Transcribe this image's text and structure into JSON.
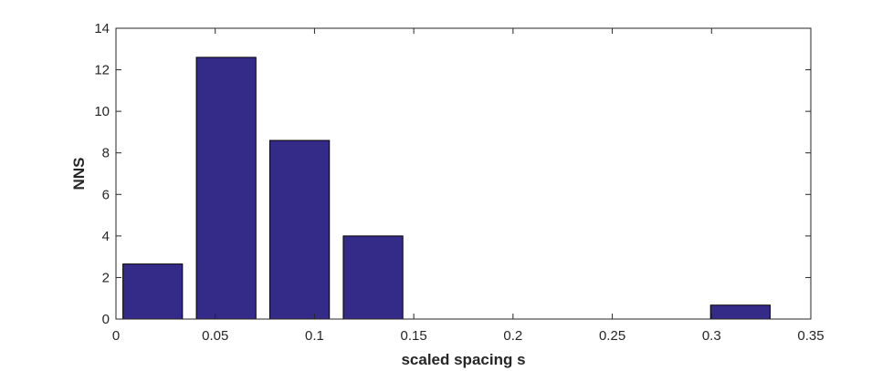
{
  "chart_data": {
    "type": "bar",
    "xlabel": "scaled spacing s",
    "ylabel": "NNS",
    "xlim": [
      0,
      0.35
    ],
    "ylim": [
      0,
      14
    ],
    "xticks": [
      0,
      0.05,
      0.1,
      0.15,
      0.2,
      0.25,
      0.3,
      0.35
    ],
    "xtick_labels": [
      "0",
      "0.05",
      "0.1",
      "0.15",
      "0.2",
      "0.25",
      "0.3",
      "0.35"
    ],
    "yticks": [
      0,
      2,
      4,
      6,
      8,
      10,
      12,
      14
    ],
    "ytick_labels": [
      "0",
      "2",
      "4",
      "6",
      "8",
      "10",
      "12",
      "14"
    ],
    "bar_width": 0.03,
    "bar_color": "#342a87",
    "x": [
      0.0185,
      0.0555,
      0.0925,
      0.1295,
      0.1665,
      0.2035,
      0.2405,
      0.2775,
      0.3145
    ],
    "values": [
      2.65,
      12.6,
      8.6,
      4.0,
      0,
      0,
      0,
      0,
      0.67
    ],
    "grid": false,
    "legend": "none"
  }
}
